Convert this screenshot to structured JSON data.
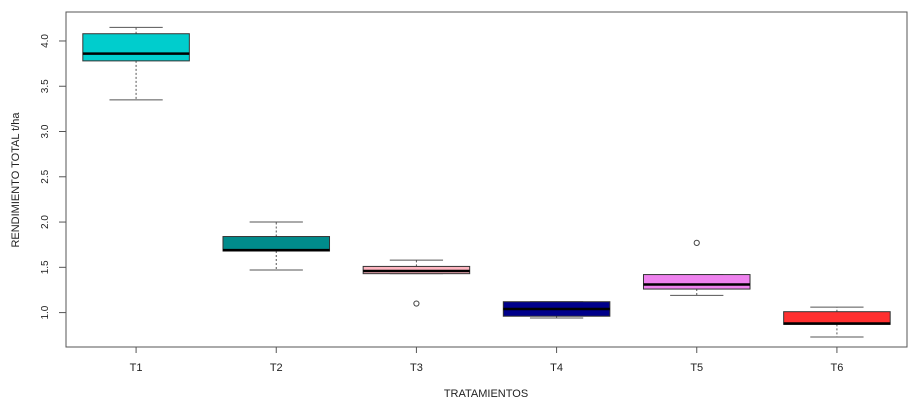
{
  "chart_data": {
    "type": "boxplot",
    "title": "",
    "xlabel": "TRATAMIENTOS",
    "ylabel": "RENDIMIENTO TOTAL t/ha",
    "ylim": [
      0.62,
      4.32
    ],
    "yticks": [
      1.0,
      1.5,
      2.0,
      2.5,
      3.0,
      3.5,
      4.0
    ],
    "ytick_labels": [
      "1.0",
      "1.5",
      "2.0",
      "2.5",
      "3.0",
      "3.5",
      "4.0"
    ],
    "grid": false,
    "legend": "none",
    "boxes": [
      {
        "category": "T1",
        "color": "#00CDCD",
        "whisker_low": 3.35,
        "q1": 3.78,
        "median": 3.86,
        "q3": 4.08,
        "whisker_high": 4.15,
        "outliers": []
      },
      {
        "category": "T2",
        "color": "#008B8B",
        "whisker_low": 1.47,
        "q1": 1.68,
        "median": 1.69,
        "q3": 1.84,
        "whisker_high": 2.0,
        "outliers": []
      },
      {
        "category": "T3",
        "color": "#FFB6C1",
        "whisker_low": 1.43,
        "q1": 1.43,
        "median": 1.46,
        "q3": 1.51,
        "whisker_high": 1.58,
        "outliers": [
          1.1
        ]
      },
      {
        "category": "T4",
        "color": "#00008B",
        "whisker_low": 0.94,
        "q1": 0.96,
        "median": 1.04,
        "q3": 1.12,
        "whisker_high": 1.12,
        "outliers": []
      },
      {
        "category": "T5",
        "color": "#EE82EE",
        "whisker_low": 1.19,
        "q1": 1.26,
        "median": 1.31,
        "q3": 1.42,
        "whisker_high": 1.42,
        "outliers": [
          1.77
        ]
      },
      {
        "category": "T6",
        "color": "#FF3030",
        "whisker_low": 0.73,
        "q1": 0.87,
        "median": 0.88,
        "q3": 1.01,
        "whisker_high": 1.06,
        "outliers": []
      }
    ]
  }
}
